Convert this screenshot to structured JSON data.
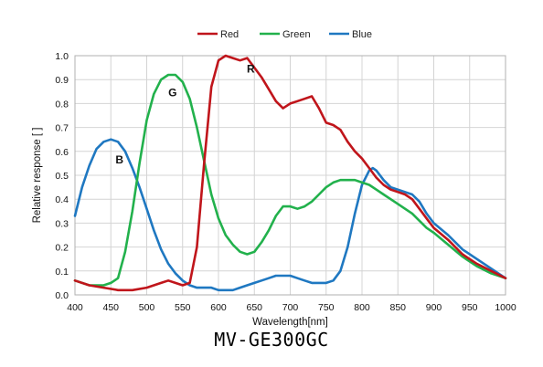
{
  "chart_data": {
    "type": "line",
    "xlabel": "Wavelength[nm]",
    "ylabel": "Relative response [ ]",
    "xlim": [
      400,
      1000
    ],
    "ylim": [
      0,
      1.0
    ],
    "xticks": [
      "400",
      "450",
      "500",
      "550",
      "600",
      "650",
      "700",
      "750",
      "800",
      "850",
      "900",
      "950",
      "1000"
    ],
    "yticks": [
      "0.0",
      "0.1",
      "0.2",
      "0.3",
      "0.4",
      "0.5",
      "0.6",
      "0.7",
      "0.8",
      "0.9",
      "1.0"
    ],
    "grid": true,
    "legend_position": "top-center",
    "series": [
      {
        "name": "Red",
        "color": "#c0151b",
        "annotation": "R",
        "x": [
          400,
          420,
          440,
          460,
          480,
          500,
          520,
          530,
          540,
          550,
          560,
          570,
          580,
          590,
          600,
          610,
          620,
          630,
          640,
          650,
          660,
          670,
          680,
          690,
          700,
          710,
          720,
          730,
          740,
          750,
          760,
          770,
          780,
          790,
          800,
          810,
          820,
          830,
          840,
          850,
          860,
          870,
          880,
          890,
          900,
          920,
          940,
          960,
          980,
          1000
        ],
        "y": [
          0.06,
          0.04,
          0.03,
          0.02,
          0.02,
          0.03,
          0.05,
          0.06,
          0.05,
          0.04,
          0.05,
          0.2,
          0.55,
          0.87,
          0.98,
          1.0,
          0.99,
          0.98,
          0.99,
          0.95,
          0.91,
          0.86,
          0.81,
          0.78,
          0.8,
          0.81,
          0.82,
          0.83,
          0.78,
          0.72,
          0.71,
          0.69,
          0.64,
          0.6,
          0.57,
          0.53,
          0.49,
          0.46,
          0.44,
          0.43,
          0.42,
          0.4,
          0.36,
          0.32,
          0.28,
          0.23,
          0.17,
          0.13,
          0.1,
          0.07
        ]
      },
      {
        "name": "Green",
        "color": "#22b14c",
        "annotation": "G",
        "x": [
          400,
          420,
          440,
          450,
          460,
          470,
          480,
          490,
          500,
          510,
          520,
          530,
          540,
          550,
          560,
          570,
          580,
          590,
          600,
          610,
          620,
          630,
          640,
          650,
          660,
          670,
          680,
          690,
          700,
          710,
          720,
          730,
          740,
          750,
          760,
          770,
          780,
          790,
          800,
          810,
          820,
          830,
          840,
          850,
          860,
          870,
          880,
          890,
          900,
          920,
          940,
          960,
          980,
          1000
        ],
        "y": [
          0.06,
          0.04,
          0.04,
          0.05,
          0.07,
          0.18,
          0.35,
          0.55,
          0.73,
          0.84,
          0.9,
          0.92,
          0.92,
          0.89,
          0.82,
          0.7,
          0.56,
          0.42,
          0.32,
          0.25,
          0.21,
          0.18,
          0.17,
          0.18,
          0.22,
          0.27,
          0.33,
          0.37,
          0.37,
          0.36,
          0.37,
          0.39,
          0.42,
          0.45,
          0.47,
          0.48,
          0.48,
          0.48,
          0.47,
          0.46,
          0.44,
          0.42,
          0.4,
          0.38,
          0.36,
          0.34,
          0.31,
          0.28,
          0.26,
          0.21,
          0.16,
          0.12,
          0.09,
          0.07
        ]
      },
      {
        "name": "Blue",
        "color": "#1f78c1",
        "annotation": "B",
        "x": [
          400,
          410,
          420,
          430,
          440,
          450,
          460,
          470,
          480,
          490,
          500,
          510,
          520,
          530,
          540,
          550,
          560,
          570,
          580,
          590,
          600,
          610,
          620,
          630,
          640,
          650,
          660,
          670,
          680,
          690,
          700,
          710,
          720,
          730,
          740,
          750,
          760,
          770,
          780,
          790,
          800,
          810,
          815,
          820,
          830,
          840,
          850,
          860,
          870,
          880,
          890,
          900,
          920,
          940,
          960,
          980,
          1000
        ],
        "y": [
          0.33,
          0.45,
          0.54,
          0.61,
          0.64,
          0.65,
          0.64,
          0.6,
          0.53,
          0.45,
          0.36,
          0.27,
          0.19,
          0.13,
          0.09,
          0.06,
          0.04,
          0.03,
          0.03,
          0.03,
          0.02,
          0.02,
          0.02,
          0.03,
          0.04,
          0.05,
          0.06,
          0.07,
          0.08,
          0.08,
          0.08,
          0.07,
          0.06,
          0.05,
          0.05,
          0.05,
          0.06,
          0.1,
          0.2,
          0.34,
          0.46,
          0.52,
          0.53,
          0.52,
          0.48,
          0.45,
          0.44,
          0.43,
          0.42,
          0.39,
          0.34,
          0.3,
          0.25,
          0.19,
          0.15,
          0.11,
          0.07
        ]
      }
    ]
  },
  "caption": "MV-GE300GC"
}
